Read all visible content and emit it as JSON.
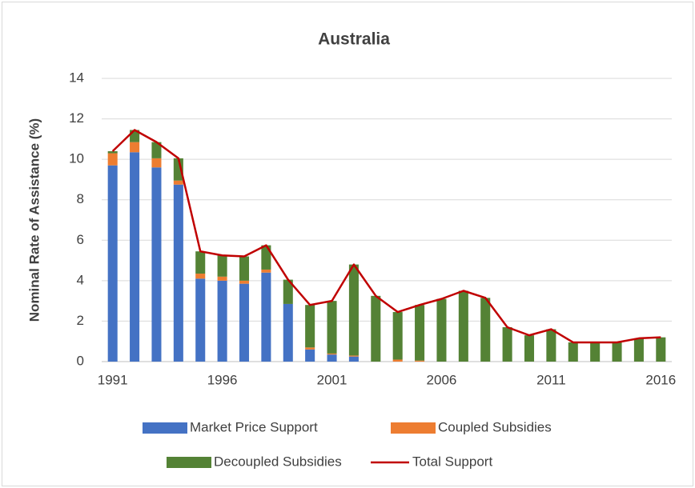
{
  "chart_data": {
    "type": "bar",
    "stacked": true,
    "title": "Australia",
    "y_label": "Nominal Rate of Assistance (%)",
    "categories": [
      "1991",
      null,
      null,
      null,
      null,
      "1996",
      null,
      null,
      null,
      null,
      "2001",
      null,
      null,
      null,
      null,
      "2006",
      null,
      null,
      null,
      null,
      "2011",
      null,
      null,
      null,
      null,
      "2016"
    ],
    "series": [
      {
        "name": "Market Price Support",
        "color": "#4472c4",
        "type": "bar",
        "values": [
          9.7,
          10.35,
          9.6,
          8.75,
          4.1,
          4.0,
          3.85,
          4.4,
          2.85,
          0.6,
          0.35,
          0.25,
          0,
          0,
          0,
          0,
          0,
          0,
          0,
          0,
          0,
          0,
          0,
          0,
          0,
          0
        ]
      },
      {
        "name": "Coupled Subsidies",
        "color": "#ed7d31",
        "type": "bar",
        "values": [
          0.6,
          0.5,
          0.45,
          0.2,
          0.25,
          0.2,
          0.15,
          0.15,
          0,
          0.1,
          0.05,
          0.05,
          0,
          0.1,
          0.05,
          0,
          0,
          0,
          0,
          0,
          0,
          0,
          0,
          0,
          0,
          0
        ]
      },
      {
        "name": "Decoupled Subsidies",
        "color": "#548235",
        "type": "bar",
        "values": [
          0.1,
          0.6,
          0.8,
          1.1,
          1.1,
          1.05,
          1.2,
          1.2,
          1.2,
          2.1,
          2.6,
          4.5,
          3.25,
          2.35,
          2.75,
          3.1,
          3.5,
          3.15,
          1.7,
          1.3,
          1.6,
          0.95,
          0.95,
          0.95,
          1.15,
          1.2
        ]
      },
      {
        "name": "Total Support",
        "color": "#c00000",
        "type": "line",
        "values": [
          10.4,
          11.45,
          10.85,
          10.05,
          5.45,
          5.25,
          5.2,
          5.75,
          4.05,
          2.8,
          3.0,
          4.8,
          3.25,
          2.45,
          2.8,
          3.1,
          3.5,
          3.15,
          1.7,
          1.3,
          1.6,
          0.95,
          0.95,
          0.95,
          1.15,
          1.2
        ]
      }
    ],
    "ylim": [
      0,
      14
    ],
    "yticks": [
      0,
      2,
      4,
      6,
      8,
      10,
      12,
      14
    ],
    "grid": true,
    "legend": "bottom"
  }
}
